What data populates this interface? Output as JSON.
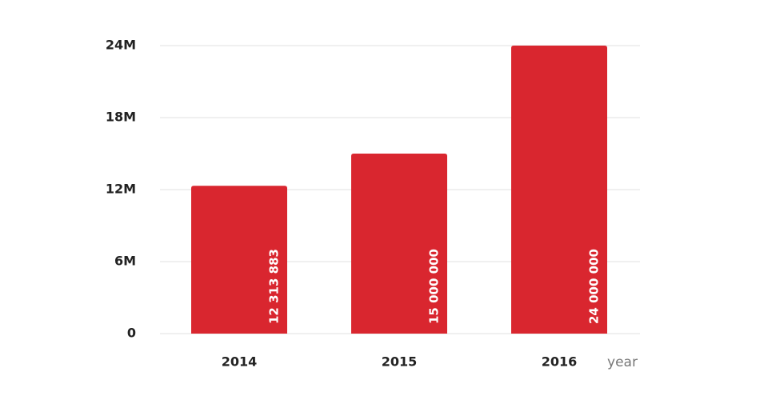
{
  "chart_data": {
    "type": "bar",
    "categories": [
      "2014",
      "2015",
      "2016"
    ],
    "values": [
      12313883,
      15000000,
      24000000
    ],
    "value_labels": [
      "12 313 883",
      "15 000 000",
      "24 000 000"
    ],
    "color": "#d9262f",
    "x_label": "year",
    "ylim": [
      0,
      24000000
    ],
    "yticks": [
      0,
      {
        "value": 6000000,
        "label": "6M"
      },
      {
        "value": 12000000,
        "label": "12M"
      },
      {
        "value": 18000000,
        "label": "18M"
      },
      {
        "value": 24000000,
        "label": "24M"
      }
    ],
    "grid": true
  }
}
